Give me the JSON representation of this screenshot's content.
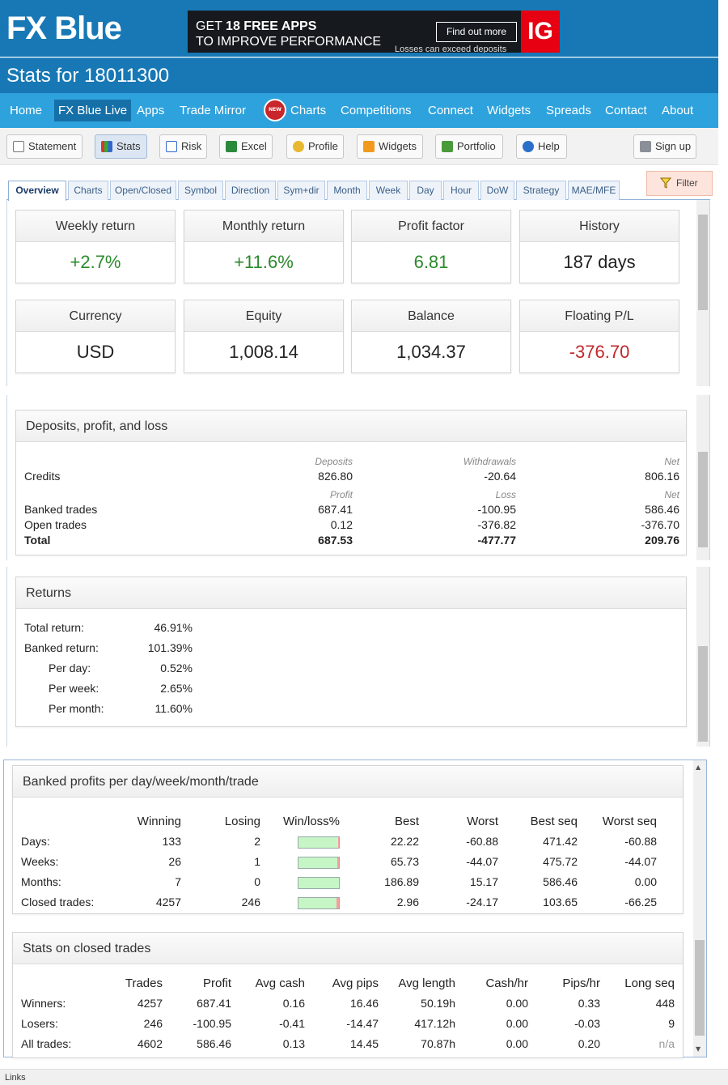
{
  "header": {
    "logo": "FX Blue",
    "ad_line1_prefix": "GET ",
    "ad_line1_bold": "18 FREE APPS",
    "ad_line2": "TO IMPROVE PERFORMANCE",
    "ad_button": "Find out more",
    "ad_disclaimer": "Losses can exceed deposits",
    "ad_brand": "IG",
    "page_title": "Stats for 18011300"
  },
  "nav": {
    "items": [
      "Home",
      "FX Blue Live",
      "Apps",
      "Trade Mirror",
      "Charts",
      "Competitions",
      "Connect",
      "Widgets",
      "Spreads",
      "Contact",
      "About"
    ],
    "active": "FX Blue Live",
    "new_badge": "NEW"
  },
  "toolbar": {
    "buttons": [
      "Statement",
      "Stats",
      "Risk",
      "Excel",
      "Profile",
      "Widgets",
      "Portfolio",
      "Help",
      "Sign up"
    ],
    "active": "Stats",
    "filter": "Filter"
  },
  "tabs": [
    "Overview",
    "Charts",
    "Open/Closed",
    "Symbol",
    "Direction",
    "Sym+dir",
    "Month",
    "Week",
    "Day",
    "Hour",
    "DoW",
    "Strategy",
    "MAE/MFE"
  ],
  "overview_cards": [
    {
      "label": "Weekly return",
      "value": "+2.7%",
      "tone": "green"
    },
    {
      "label": "Monthly return",
      "value": "+11.6%",
      "tone": "green"
    },
    {
      "label": "Profit factor",
      "value": "6.81",
      "tone": "green"
    },
    {
      "label": "History",
      "value": "187 days",
      "tone": "neutral"
    },
    {
      "label": "Currency",
      "value": "USD",
      "tone": "neutral"
    },
    {
      "label": "Equity",
      "value": "1,008.14",
      "tone": "neutral"
    },
    {
      "label": "Balance",
      "value": "1,034.37",
      "tone": "neutral"
    },
    {
      "label": "Floating P/L",
      "value": "-376.70",
      "tone": "red"
    }
  ],
  "deposits": {
    "title": "Deposits, profit, and loss",
    "col_labels_1": [
      "Deposits",
      "Withdrawals",
      "Net"
    ],
    "col_labels_2": [
      "Profit",
      "Loss",
      "Net"
    ],
    "rows": [
      {
        "label": "Credits",
        "a": "826.80",
        "b": "-20.64",
        "c": "806.16"
      },
      {
        "label": "Banked trades",
        "a": "687.41",
        "b": "-100.95",
        "c": "586.46"
      },
      {
        "label": "Open trades",
        "a": "0.12",
        "b": "-376.82",
        "c": "-376.70"
      },
      {
        "label": "Total",
        "a": "687.53",
        "b": "-477.77",
        "c": "209.76"
      }
    ]
  },
  "returns": {
    "title": "Returns",
    "rows": [
      {
        "label": "Total return:",
        "value": "46.91%"
      },
      {
        "label": "Banked return:",
        "value": "101.39%"
      },
      {
        "label": "Per day:",
        "value": "0.52%"
      },
      {
        "label": "Per week:",
        "value": "2.65%"
      },
      {
        "label": "Per month:",
        "value": "11.60%"
      }
    ]
  },
  "banked": {
    "title": "Banked profits per day/week/month/trade",
    "headers": [
      "Winning",
      "Losing",
      "Win/loss%",
      "Best",
      "Worst",
      "Best seq",
      "Worst seq"
    ],
    "rows": [
      {
        "label": "Days:",
        "winning": "133",
        "losing": "2",
        "win_fraction": 0.985,
        "best": "22.22",
        "worst": "-60.88",
        "best_seq": "471.42",
        "worst_seq": "-60.88"
      },
      {
        "label": "Weeks:",
        "winning": "26",
        "losing": "1",
        "win_fraction": 0.963,
        "best": "65.73",
        "worst": "-44.07",
        "best_seq": "475.72",
        "worst_seq": "-44.07"
      },
      {
        "label": "Months:",
        "winning": "7",
        "losing": "0",
        "win_fraction": 1.0,
        "best": "186.89",
        "worst": "15.17",
        "best_seq": "586.46",
        "worst_seq": "0.00"
      },
      {
        "label": "Closed trades:",
        "winning": "4257",
        "losing": "246",
        "win_fraction": 0.945,
        "best": "2.96",
        "worst": "-24.17",
        "best_seq": "103.65",
        "worst_seq": "-66.25"
      }
    ]
  },
  "closed": {
    "title": "Stats on closed trades",
    "headers": [
      "Trades",
      "Profit",
      "Avg cash",
      "Avg pips",
      "Avg length",
      "Cash/hr",
      "Pips/hr",
      "Long seq"
    ],
    "rows": [
      {
        "label": "Winners:",
        "cells": [
          "4257",
          "687.41",
          "0.16",
          "16.46",
          "50.19h",
          "0.00",
          "0.33",
          "448"
        ]
      },
      {
        "label": "Losers:",
        "cells": [
          "246",
          "-100.95",
          "-0.41",
          "-14.47",
          "417.12h",
          "0.00",
          "-0.03",
          "9"
        ]
      },
      {
        "label": "All trades:",
        "cells": [
          "4602",
          "586.46",
          "0.13",
          "14.45",
          "70.87h",
          "0.00",
          "0.20",
          "n/a"
        ]
      }
    ]
  },
  "statusbar": "Links",
  "colors": {
    "brand": "#1878b5",
    "nav": "#2ea2dc",
    "positive": "#2b8a2b",
    "negative": "#c0282c"
  }
}
